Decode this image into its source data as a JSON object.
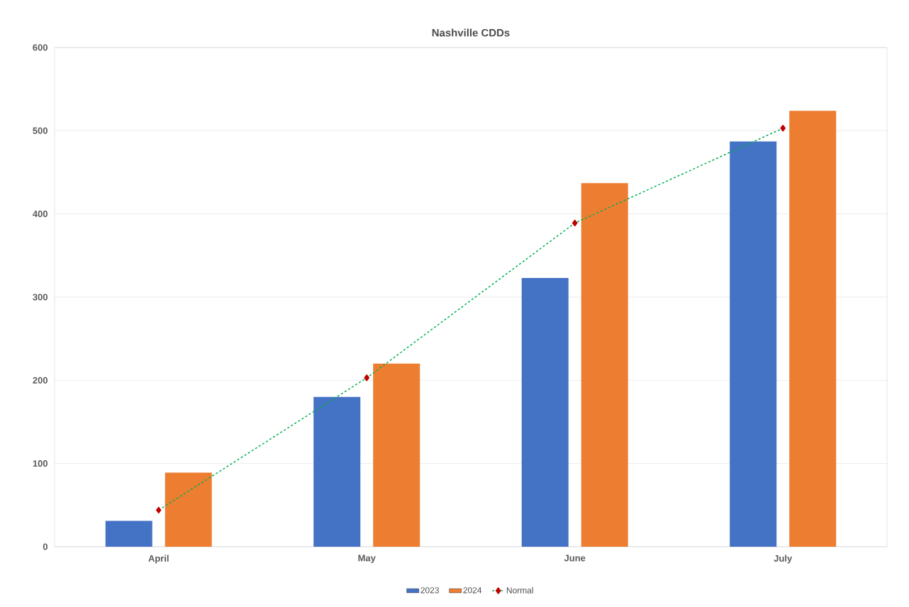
{
  "chart_data": {
    "type": "bar",
    "title": "Nashville CDDs",
    "categories": [
      "April",
      "May",
      "June",
      "July"
    ],
    "series": [
      {
        "name": "2023",
        "color": "#4472c4",
        "values": [
          31,
          180,
          323,
          487
        ]
      },
      {
        "name": "2024",
        "color": "#ed7d31",
        "values": [
          89,
          220,
          437,
          524
        ]
      },
      {
        "name": "Normal",
        "type": "line",
        "color": "#00b050",
        "marker": "diamond",
        "line_style": "dashed",
        "values": [
          44,
          203,
          389,
          503
        ]
      }
    ],
    "ylim": [
      0,
      600
    ],
    "yticks": [
      0,
      100,
      200,
      300,
      400,
      500,
      600
    ],
    "grid": "y",
    "legend": "bottom"
  }
}
